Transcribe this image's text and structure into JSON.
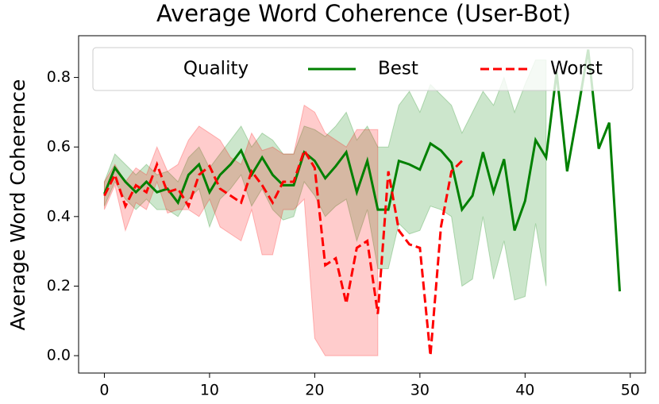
{
  "chart_data": {
    "type": "line",
    "title": "Average Word Coherence (User-Bot)",
    "y_label": "Average Word Coherence",
    "legend_title": "Quality",
    "legend_loc": "upper center",
    "x": [
      0,
      1,
      2,
      3,
      4,
      5,
      6,
      7,
      8,
      9,
      10,
      11,
      12,
      13,
      14,
      15,
      16,
      17,
      18,
      19,
      20,
      21,
      22,
      23,
      24,
      25,
      26,
      27,
      28,
      29,
      30,
      31,
      32,
      33,
      34,
      35,
      36,
      37,
      38,
      39,
      40,
      41,
      42,
      43,
      44,
      45,
      46,
      47,
      48,
      49
    ],
    "xlim": [
      -2.45,
      51.45
    ],
    "xticks": [
      0,
      10,
      20,
      30,
      40,
      50
    ],
    "ylim": [
      -0.05,
      0.92
    ],
    "yticks": [
      {
        "value": 0,
        "label": "0.0"
      },
      0.2,
      0.4,
      0.6,
      0.8
    ],
    "series": [
      {
        "name": "Best",
        "color": "#008000",
        "dash": false,
        "values": [
          0.465,
          0.54,
          0.5,
          0.47,
          0.5,
          0.47,
          0.48,
          0.44,
          0.52,
          0.55,
          0.47,
          0.52,
          0.55,
          0.59,
          0.52,
          0.57,
          0.52,
          0.49,
          0.49,
          0.585,
          0.56,
          0.51,
          0.545,
          0.585,
          0.47,
          0.56,
          0.42,
          0.42,
          0.56,
          0.55,
          0.535,
          0.61,
          0.59,
          0.555,
          0.42,
          0.46,
          0.585,
          0.47,
          0.565,
          0.36,
          0.445,
          0.62,
          0.57,
          0.815,
          0.53,
          0.7,
          0.88,
          0.595,
          0.67,
          0.185
        ],
        "upper": [
          0.5,
          0.58,
          0.55,
          0.52,
          0.55,
          0.52,
          0.53,
          0.5,
          0.57,
          0.6,
          0.54,
          0.58,
          0.62,
          0.66,
          0.6,
          0.64,
          0.62,
          0.58,
          0.58,
          0.66,
          0.65,
          0.63,
          0.66,
          0.7,
          0.62,
          0.66,
          0.6,
          0.6,
          0.72,
          0.76,
          0.7,
          0.78,
          0.75,
          0.72,
          0.64,
          0.7,
          0.76,
          0.72,
          0.8,
          0.7,
          0.78,
          0.85,
          0.85,
          null,
          null,
          null,
          null,
          null,
          null,
          null
        ],
        "lower": [
          0.43,
          0.5,
          0.45,
          0.42,
          0.45,
          0.42,
          0.42,
          0.4,
          0.45,
          0.48,
          0.37,
          0.45,
          0.48,
          0.52,
          0.43,
          0.48,
          0.42,
          0.39,
          0.4,
          0.5,
          0.46,
          0.4,
          0.43,
          0.45,
          0.33,
          0.42,
          0.25,
          0.25,
          0.38,
          0.35,
          0.36,
          0.43,
          0.42,
          0.4,
          0.2,
          0.22,
          0.4,
          0.22,
          0.33,
          0.16,
          0.17,
          0.38,
          0.2,
          null,
          null,
          null,
          null,
          null,
          null,
          null
        ]
      },
      {
        "name": "Worst",
        "color": "#ff0000",
        "dash": true,
        "values": [
          0.46,
          0.52,
          0.43,
          0.49,
          0.47,
          0.55,
          0.47,
          0.48,
          0.43,
          0.52,
          0.545,
          0.48,
          0.46,
          0.44,
          0.53,
          0.49,
          0.44,
          0.5,
          0.5,
          0.59,
          0.54,
          0.26,
          0.28,
          0.15,
          0.31,
          0.33,
          0.12,
          0.53,
          0.36,
          0.32,
          0.31,
          0.0,
          0.37,
          0.53,
          0.56,
          null,
          null,
          null,
          null,
          null,
          null,
          null,
          null,
          null,
          null,
          null,
          null,
          null,
          null,
          null
        ],
        "upper": [
          0.5,
          0.55,
          0.5,
          0.54,
          0.52,
          0.6,
          0.53,
          0.55,
          0.62,
          0.66,
          0.64,
          0.62,
          0.57,
          0.55,
          0.64,
          0.59,
          0.6,
          0.58,
          0.58,
          0.72,
          0.7,
          0.64,
          0.62,
          0.6,
          0.65,
          0.65,
          0.65,
          null,
          null,
          null,
          null,
          null,
          null,
          null,
          null,
          null,
          null,
          null,
          null,
          null,
          null,
          null,
          null,
          null,
          null,
          null,
          null,
          null,
          null,
          null
        ],
        "lower": [
          0.42,
          0.49,
          0.36,
          0.44,
          0.42,
          0.5,
          0.41,
          0.42,
          0.42,
          0.4,
          0.45,
          0.37,
          0.35,
          0.33,
          0.42,
          0.29,
          0.29,
          0.42,
          0.42,
          0.45,
          0.05,
          0.0,
          0.0,
          0.0,
          0.0,
          0.0,
          0.0,
          null,
          null,
          null,
          null,
          null,
          null,
          null,
          null,
          null,
          null,
          null,
          null,
          null,
          null,
          null,
          null,
          null,
          null,
          null,
          null,
          null,
          null,
          null
        ]
      }
    ]
  }
}
